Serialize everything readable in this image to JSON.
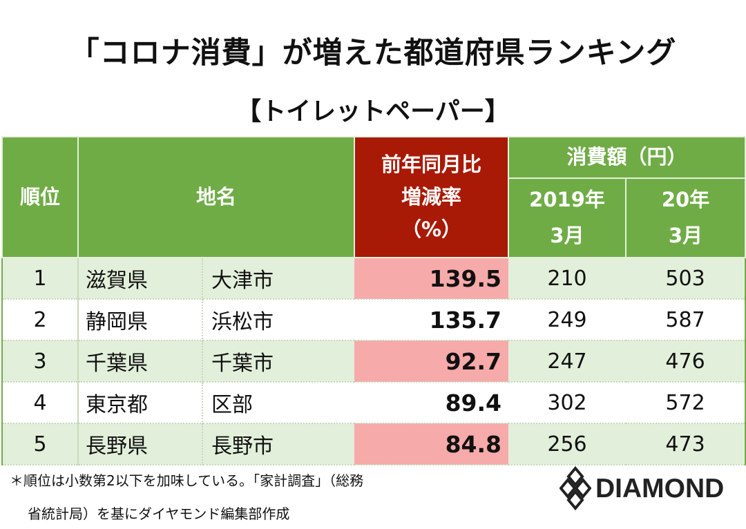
{
  "title": "「コロナ消費」が増えた都道府県ランキング",
  "subtitle": "【トイレットペーパー】",
  "chart_data": {
    "type": "table",
    "headers": {
      "rank": "順位",
      "place": "地名",
      "rate": [
        "前年同月比",
        "増減率",
        "（%）"
      ],
      "spending": "消費額（円）",
      "y2019": [
        "2019年",
        "3月"
      ],
      "y2020": [
        "20年",
        "3月"
      ]
    },
    "rows": [
      {
        "rank": "1",
        "pref": "滋賀県",
        "city": "大津市",
        "rate": "139.5",
        "y2019": "210",
        "y2020": "503"
      },
      {
        "rank": "2",
        "pref": "静岡県",
        "city": "浜松市",
        "rate": "135.7",
        "y2019": "249",
        "y2020": "587"
      },
      {
        "rank": "3",
        "pref": "千葉県",
        "city": "千葉市",
        "rate": "92.7",
        "y2019": "247",
        "y2020": "476"
      },
      {
        "rank": "4",
        "pref": "東京都",
        "city": "区部",
        "rate": "89.4",
        "y2019": "302",
        "y2020": "572"
      },
      {
        "rank": "5",
        "pref": "長野県",
        "city": "長野市",
        "rate": "84.8",
        "y2019": "256",
        "y2020": "473"
      }
    ]
  },
  "footnote": [
    "＊順位は小数第2以下を加味している。「家計調査」（総務",
    "省統計局）を基にダイヤモンド編集部作成"
  ],
  "logo": "DIAMOND",
  "colors": {
    "header_green": "#6fac46",
    "header_red": "#a81a05",
    "row_green": "#e2efda",
    "rate_pink": "#f6aaa9"
  }
}
